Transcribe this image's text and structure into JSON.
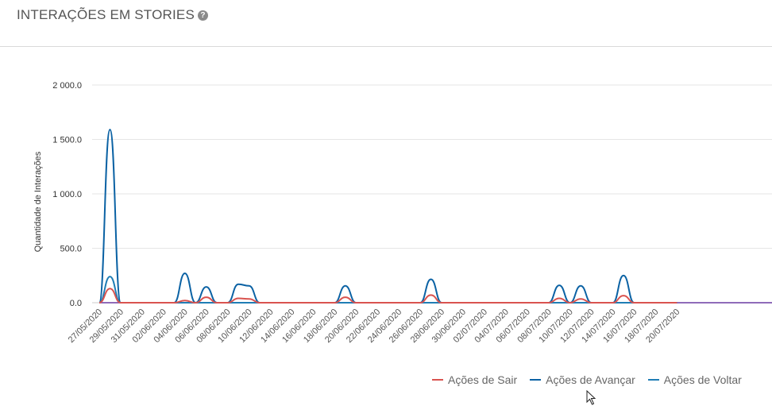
{
  "header": {
    "title": "INTERAÇÕES EM STORIES",
    "help_icon": "question-circle-icon"
  },
  "chart_data": {
    "type": "line",
    "ylabel": "Quantidade de Interações",
    "xlabel": "",
    "ylim": [
      0,
      2000
    ],
    "yticks": [
      "0.0",
      "500.0",
      "1 000.0",
      "1 500.0",
      "2 000.0"
    ],
    "categories": [
      "27/05/2020",
      "28/05/2020",
      "29/05/2020",
      "30/05/2020",
      "31/05/2020",
      "01/06/2020",
      "02/06/2020",
      "03/06/2020",
      "04/06/2020",
      "05/06/2020",
      "06/06/2020",
      "07/06/2020",
      "08/06/2020",
      "09/06/2020",
      "10/06/2020",
      "11/06/2020",
      "12/06/2020",
      "13/06/2020",
      "14/06/2020",
      "15/06/2020",
      "16/06/2020",
      "17/06/2020",
      "18/06/2020",
      "19/06/2020",
      "20/06/2020",
      "21/06/2020",
      "22/06/2020",
      "23/06/2020",
      "24/06/2020",
      "25/06/2020",
      "26/06/2020",
      "27/06/2020",
      "28/06/2020",
      "29/06/2020",
      "30/06/2020",
      "01/07/2020",
      "02/07/2020",
      "03/07/2020",
      "04/07/2020",
      "05/07/2020",
      "06/07/2020",
      "07/07/2020",
      "08/07/2020",
      "09/07/2020",
      "10/07/2020",
      "11/07/2020",
      "12/07/2020",
      "13/07/2020",
      "14/07/2020",
      "15/07/2020",
      "16/07/2020",
      "17/07/2020",
      "18/07/2020",
      "19/07/2020",
      "20/07/2020"
    ],
    "tick_labels": [
      "27/05/2020",
      "29/05/2020",
      "31/05/2020",
      "02/06/2020",
      "04/06/2020",
      "06/06/2020",
      "08/06/2020",
      "10/06/2020",
      "12/06/2020",
      "14/06/2020",
      "16/06/2020",
      "18/06/2020",
      "20/06/2020",
      "22/06/2020",
      "24/06/2020",
      "26/06/2020",
      "28/06/2020",
      "30/06/2020",
      "02/07/2020",
      "04/07/2020",
      "06/07/2020",
      "08/07/2020",
      "10/07/2020",
      "12/07/2020",
      "14/07/2020",
      "16/07/2020",
      "18/07/2020",
      "20/07/2020"
    ],
    "series": [
      {
        "name": "Ações de Sair",
        "color": "#d9534f",
        "values": [
          0,
          130,
          0,
          0,
          0,
          0,
          0,
          0,
          20,
          0,
          50,
          0,
          0,
          40,
          35,
          0,
          0,
          0,
          0,
          0,
          0,
          0,
          0,
          50,
          0,
          0,
          0,
          0,
          0,
          0,
          0,
          70,
          0,
          0,
          0,
          0,
          0,
          0,
          0,
          0,
          0,
          0,
          0,
          40,
          0,
          35,
          0,
          0,
          0,
          65,
          0,
          0,
          0,
          0,
          0
        ]
      },
      {
        "name": "Ações de Avançar",
        "color": "#0b62a4",
        "values": [
          0,
          1590,
          0,
          0,
          0,
          0,
          0,
          0,
          270,
          0,
          145,
          0,
          0,
          170,
          155,
          0,
          0,
          0,
          0,
          0,
          0,
          0,
          0,
          155,
          0,
          0,
          0,
          0,
          0,
          0,
          0,
          215,
          0,
          0,
          0,
          0,
          0,
          0,
          0,
          0,
          0,
          0,
          0,
          160,
          0,
          155,
          0,
          0,
          0,
          250,
          0,
          0,
          0,
          0,
          0
        ]
      },
      {
        "name": "Ações de Voltar",
        "color": "#1f7db5",
        "values": [
          0,
          240,
          0,
          0,
          0,
          0,
          0,
          0,
          0,
          0,
          0,
          0,
          0,
          0,
          0,
          0,
          0,
          0,
          0,
          0,
          0,
          0,
          0,
          0,
          0,
          0,
          0,
          0,
          0,
          0,
          0,
          0,
          0,
          0,
          0,
          0,
          0,
          0,
          0,
          0,
          0,
          0,
          0,
          0,
          0,
          0,
          0,
          0,
          0,
          0,
          0,
          0,
          0,
          0,
          0
        ]
      }
    ],
    "baseline_color": "#6a3aa2",
    "grid": true,
    "legend_position": "bottom-right"
  }
}
